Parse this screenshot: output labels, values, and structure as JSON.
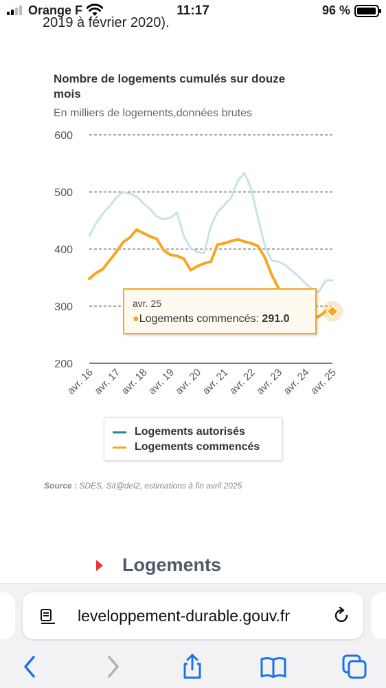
{
  "status_bar": {
    "carrier": "Orange F",
    "time": "11:17",
    "battery": "96 %"
  },
  "page": {
    "fragment_text": "2019 à février 2020).",
    "source_label": "Source :",
    "source_text": " SDES, Sit@del2, estimations à fin avril 2025",
    "section_heading": "Logements"
  },
  "chart_data": {
    "type": "line",
    "title": "Nombre de logements cumulés sur douze mois",
    "subtitle": "En milliers de logements,données brutes",
    "x_tick_labels": [
      "avr. 16",
      "avr. 17",
      "avr. 18",
      "avr. 19",
      "avr. 20",
      "avr. 21",
      "avr. 22",
      "avr. 23",
      "avr. 24",
      "avr. 25"
    ],
    "x_range": [
      2016.25,
      2025.25
    ],
    "ylim": [
      200,
      600
    ],
    "yticks": [
      200,
      300,
      400,
      500,
      600
    ],
    "grid": true,
    "legend_position": "bottom",
    "series": [
      {
        "name": "Logements autorisés",
        "color": "#c9e3e3",
        "x": [
          2016.25,
          2016.5,
          2016.75,
          2017.0,
          2017.25,
          2017.5,
          2017.75,
          2018.0,
          2018.25,
          2018.5,
          2018.75,
          2019.0,
          2019.25,
          2019.5,
          2019.75,
          2020.0,
          2020.25,
          2020.5,
          2020.75,
          2021.0,
          2021.25,
          2021.5,
          2021.75,
          2022.0,
          2022.25,
          2022.5,
          2022.75,
          2023.0,
          2023.25,
          2023.5,
          2023.75,
          2024.0,
          2024.25,
          2024.5,
          2024.75,
          2025.0,
          2025.25
        ],
        "y": [
          423,
          445,
          462,
          475,
          490,
          500,
          497,
          492,
          480,
          470,
          457,
          452,
          455,
          464,
          422,
          402,
          395,
          393,
          440,
          465,
          477,
          490,
          520,
          533,
          505,
          453,
          405,
          380,
          378,
          372,
          362,
          352,
          340,
          330,
          325,
          345,
          345
        ]
      },
      {
        "name": "Logements commencés",
        "color": "#f6a623",
        "x": [
          2016.25,
          2016.5,
          2016.75,
          2017.0,
          2017.25,
          2017.5,
          2017.75,
          2018.0,
          2018.25,
          2018.5,
          2018.75,
          2019.0,
          2019.25,
          2019.5,
          2019.75,
          2020.0,
          2020.25,
          2020.5,
          2020.75,
          2021.0,
          2021.25,
          2021.5,
          2021.75,
          2022.0,
          2022.25,
          2022.5,
          2022.75,
          2023.0,
          2023.25,
          2023.5,
          2023.75,
          2024.0,
          2024.25,
          2024.5,
          2024.75,
          2025.0,
          2025.25
        ],
        "y": [
          348,
          358,
          365,
          380,
          395,
          412,
          420,
          434,
          428,
          422,
          418,
          398,
          390,
          388,
          383,
          363,
          370,
          375,
          378,
          408,
          410,
          414,
          417,
          413,
          410,
          405,
          385,
          355,
          332,
          310,
          290,
          280,
          282,
          278,
          282,
          291,
          291
        ]
      }
    ],
    "tooltip": {
      "date": "avr. 25",
      "series_name": "Logements commencés",
      "value": "291.0",
      "x": 2025.25,
      "y": 291
    }
  },
  "browser": {
    "url": "leveloppement-durable.gouv.fr",
    "icons": [
      "reader-icon",
      "reload-icon",
      "back-icon",
      "forward-icon",
      "share-icon",
      "bookmarks-icon",
      "tabs-icon"
    ]
  }
}
